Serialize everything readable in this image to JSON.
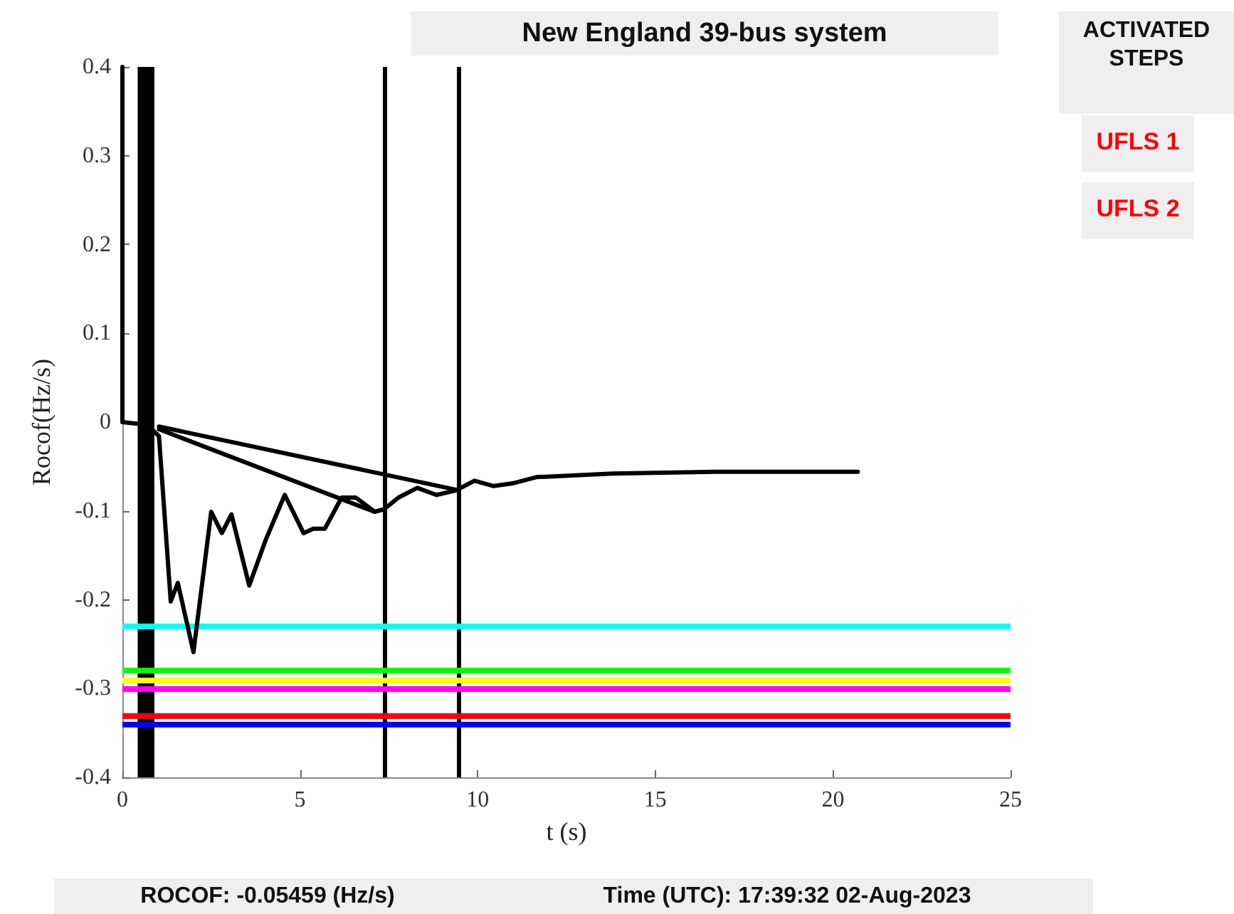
{
  "chart_data": {
    "type": "line",
    "title": "New England 39-bus system",
    "xlabel": "t (s)",
    "ylabel": "Rocof(Hz/s)",
    "annotations": [
      "ROCOF: -0.05459 (Hz/s)",
      "Time (UTC): 17:39:32 02-Aug-2023",
      "ACTIVATED STEPS",
      "UFLS 1",
      "UFLS 2"
    ],
    "series": [
      {
        "color": "#000000",
        "x": [
          0,
          0,
          0.7,
          1.03,
          1.36,
          1.56,
          2.0,
          2.5,
          2.8,
          3.07,
          3.57,
          4.03,
          4.57,
          5.1,
          5.37,
          5.7,
          6.17,
          6.57,
          7.1,
          7.37,
          7.77,
          8.3,
          8.84,
          9.38,
          9.91,
          10.45,
          10.98,
          11.65,
          13.8,
          16.7,
          20.7
        ],
        "values": [
          0.4,
          0,
          -0.003,
          -0.016,
          -0.202,
          -0.181,
          -0.259,
          -0.101,
          -0.125,
          -0.104,
          -0.184,
          -0.133,
          -0.082,
          -0.125,
          -0.12,
          -0.12,
          -0.085,
          -0.085,
          -0.101,
          -0.098,
          -0.085,
          -0.074,
          -0.082,
          -0.077,
          -0.066,
          -0.072,
          -0.069,
          -0.062,
          -0.058,
          -0.056,
          -0.056
        ]
      },
      {
        "color": "#000000",
        "x": [
          1.03,
          9.38
        ],
        "values": [
          -0.005,
          -0.076
        ]
      },
      {
        "color": "#000000",
        "x": [
          1.03,
          7.1
        ],
        "values": [
          -0.008,
          -0.101
        ]
      }
    ],
    "xlim": [
      0,
      25
    ],
    "xticks": [
      0,
      5,
      10,
      15,
      20,
      25
    ],
    "ylim": [
      -0.4,
      0.4
    ],
    "yticks": [
      -0.4,
      -0.3,
      -0.2,
      -0.1,
      0,
      0.1,
      0.2,
      0.3,
      0.4
    ],
    "ref_lines": [
      {
        "axis": "x",
        "value": 7.37,
        "color": "#000000"
      },
      {
        "axis": "x",
        "value": 9.45,
        "color": "#000000"
      },
      {
        "axis": "y",
        "value": -0.23,
        "color": "#00ffff"
      },
      {
        "axis": "y",
        "value": -0.277,
        "color": "#00ff00"
      },
      {
        "axis": "y",
        "value": -0.288,
        "color": "#ffff00"
      },
      {
        "axis": "y",
        "value": -0.3,
        "color": "#ff00ff"
      },
      {
        "axis": "y",
        "value": -0.33,
        "color": "#ff0000"
      },
      {
        "axis": "y",
        "value": -0.34,
        "color": "#0000ff"
      }
    ],
    "bands": [
      {
        "axis": "x",
        "from": 0.43,
        "to": 0.9,
        "color": "#000000"
      }
    ],
    "grid": false,
    "legend": false,
    "marker": "none",
    "line_style": "solid"
  }
}
